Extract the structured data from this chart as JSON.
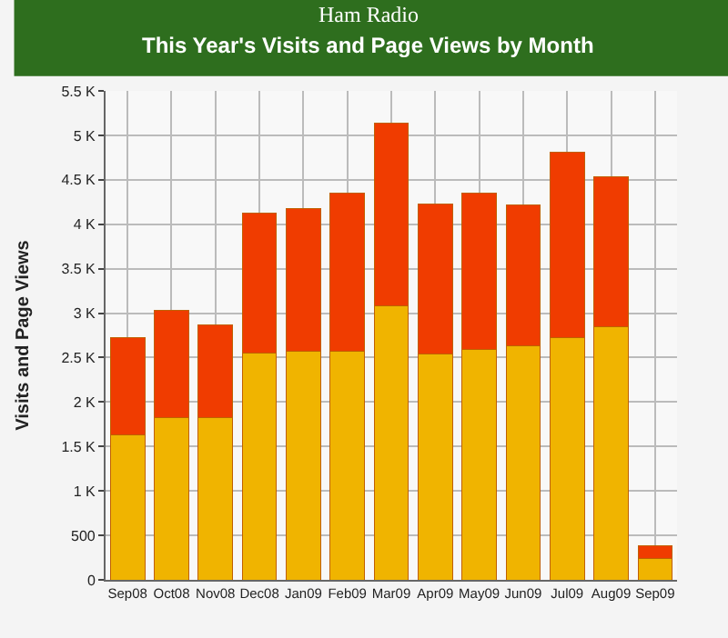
{
  "chart_data": {
    "type": "bar",
    "stacked": true,
    "title": "Ham Radio",
    "subtitle": "This Year's Visits and Page Views by Month",
    "ylabel": "Visits and Page Views",
    "categories": [
      "Sep08",
      "Oct08",
      "Nov08",
      "Dec08",
      "Jan09",
      "Feb09",
      "Mar09",
      "Apr09",
      "May09",
      "Jun09",
      "Jul09",
      "Aug09",
      "Sep09"
    ],
    "series": [
      {
        "color": "#f0b400",
        "values": [
          1630,
          1820,
          1830,
          2550,
          2570,
          2570,
          3080,
          2540,
          2590,
          2630,
          2720,
          2850,
          240
        ]
      },
      {
        "color": "#f03c00",
        "values": [
          1090,
          1210,
          1040,
          1570,
          1610,
          1780,
          2060,
          1690,
          1760,
          1590,
          2090,
          1680,
          140
        ]
      }
    ],
    "ylim": [
      0,
      5500
    ],
    "yticks": [
      0,
      500,
      {
        "value": 1000,
        "label": "1 K"
      },
      {
        "value": 1500,
        "label": "1.5 K"
      },
      {
        "value": 2000,
        "label": "2 K"
      },
      {
        "value": 2500,
        "label": "2.5 K"
      },
      {
        "value": 3000,
        "label": "3 K"
      },
      {
        "value": 3500,
        "label": "3.5 K"
      },
      {
        "value": 4000,
        "label": "4 K"
      },
      {
        "value": 4500,
        "label": "4.5 K"
      },
      {
        "value": 5000,
        "label": "5 K"
      },
      {
        "value": 5500,
        "label": "5.5 K"
      }
    ],
    "grid": true
  }
}
